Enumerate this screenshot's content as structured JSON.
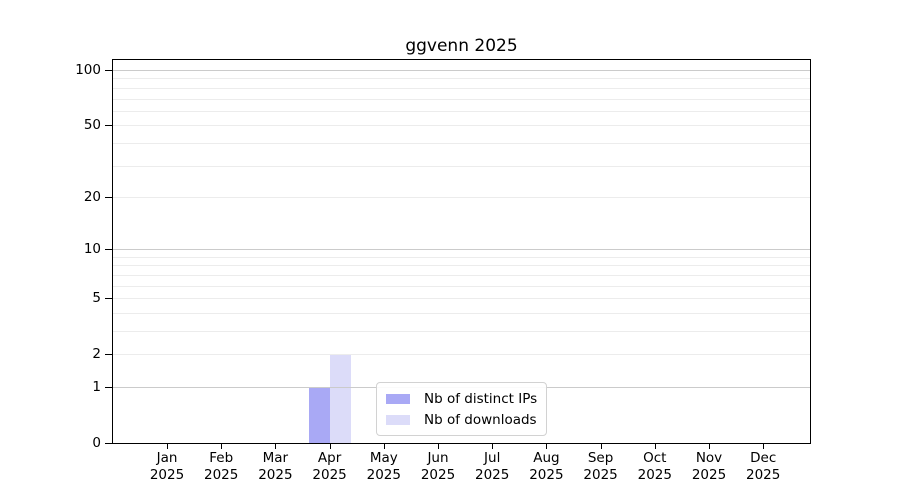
{
  "chart_data": {
    "type": "bar",
    "title": "ggvenn 2025",
    "categories": [
      "Jan 2025",
      "Feb 2025",
      "Mar 2025",
      "Apr 2025",
      "May 2025",
      "Jun 2025",
      "Jul 2025",
      "Aug 2025",
      "Sep 2025",
      "Oct 2025",
      "Nov 2025",
      "Dec 2025"
    ],
    "series": [
      {
        "name": "Nb of distinct IPs",
        "color": "#a9a9f5",
        "values": [
          0,
          0,
          0,
          1,
          0,
          0,
          0,
          0,
          0,
          0,
          0,
          0
        ]
      },
      {
        "name": "Nb of downloads",
        "color": "#dcdcf9",
        "values": [
          0,
          0,
          0,
          2,
          0,
          0,
          0,
          0,
          0,
          0,
          0,
          0
        ]
      }
    ],
    "xlabel": "",
    "ylabel": "",
    "y_axis": {
      "scale": "log1p",
      "ticks": [
        0,
        1,
        2,
        5,
        10,
        20,
        50,
        100
      ],
      "ylim": [
        0,
        113
      ]
    },
    "grid": {
      "major_values": [
        1,
        10,
        100
      ],
      "minor_values": [
        2,
        3,
        4,
        5,
        6,
        7,
        8,
        9,
        20,
        30,
        40,
        50,
        60,
        70,
        80,
        90
      ],
      "major_color": "#cbcbcb",
      "minor_color": "#ececec"
    },
    "legend": {
      "position": "lower center"
    }
  },
  "colors": {
    "background": "#ffffff",
    "spine": "#000000",
    "text": "#000000"
  }
}
